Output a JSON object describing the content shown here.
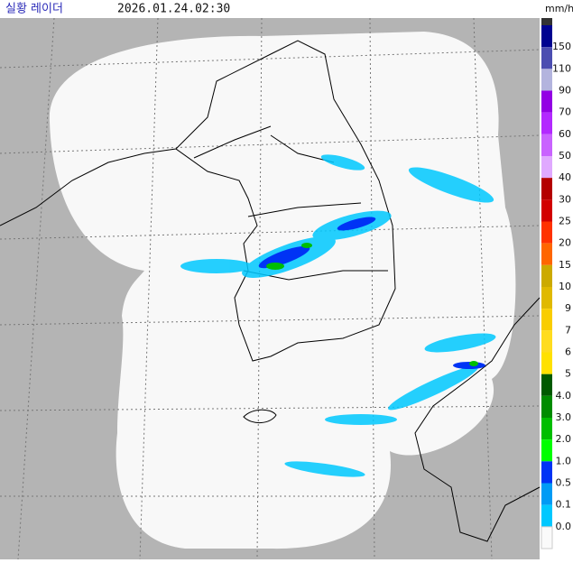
{
  "header": {
    "title": "실황 레이더",
    "time": "2026.01.24.02:30"
  },
  "legend": {
    "unit": "mm/h",
    "items": [
      {
        "label": "150",
        "color": "#000390"
      },
      {
        "label": "110",
        "color": "#4c4eb1"
      },
      {
        "label": "90",
        "color": "#b3b4de"
      },
      {
        "label": "70",
        "color": "#9300e4"
      },
      {
        "label": "60",
        "color": "#b329ff"
      },
      {
        "label": "50",
        "color": "#c963ff"
      },
      {
        "label": "40",
        "color": "#e0a9ff"
      },
      {
        "label": "30",
        "color": "#b40000"
      },
      {
        "label": "25",
        "color": "#d20000"
      },
      {
        "label": "20",
        "color": "#ff3200"
      },
      {
        "label": "15",
        "color": "#ff6600"
      },
      {
        "label": "10",
        "color": "#ccaa00"
      },
      {
        "label": "9",
        "color": "#e0b900"
      },
      {
        "label": "7",
        "color": "#f9cd00"
      },
      {
        "label": "6",
        "color": "#ffdc1f"
      },
      {
        "label": "5",
        "color": "#ffe100"
      },
      {
        "label": "4.0",
        "color": "#005a00"
      },
      {
        "label": "3.0",
        "color": "#008c00"
      },
      {
        "label": "2.0",
        "color": "#00be00"
      },
      {
        "label": "1.0",
        "color": "#00ff00"
      },
      {
        "label": "0.5",
        "color": "#0033f5"
      },
      {
        "label": "0.1",
        "color": "#009bf5"
      },
      {
        "label": "0.0",
        "color": "#00c8ff"
      }
    ]
  }
}
